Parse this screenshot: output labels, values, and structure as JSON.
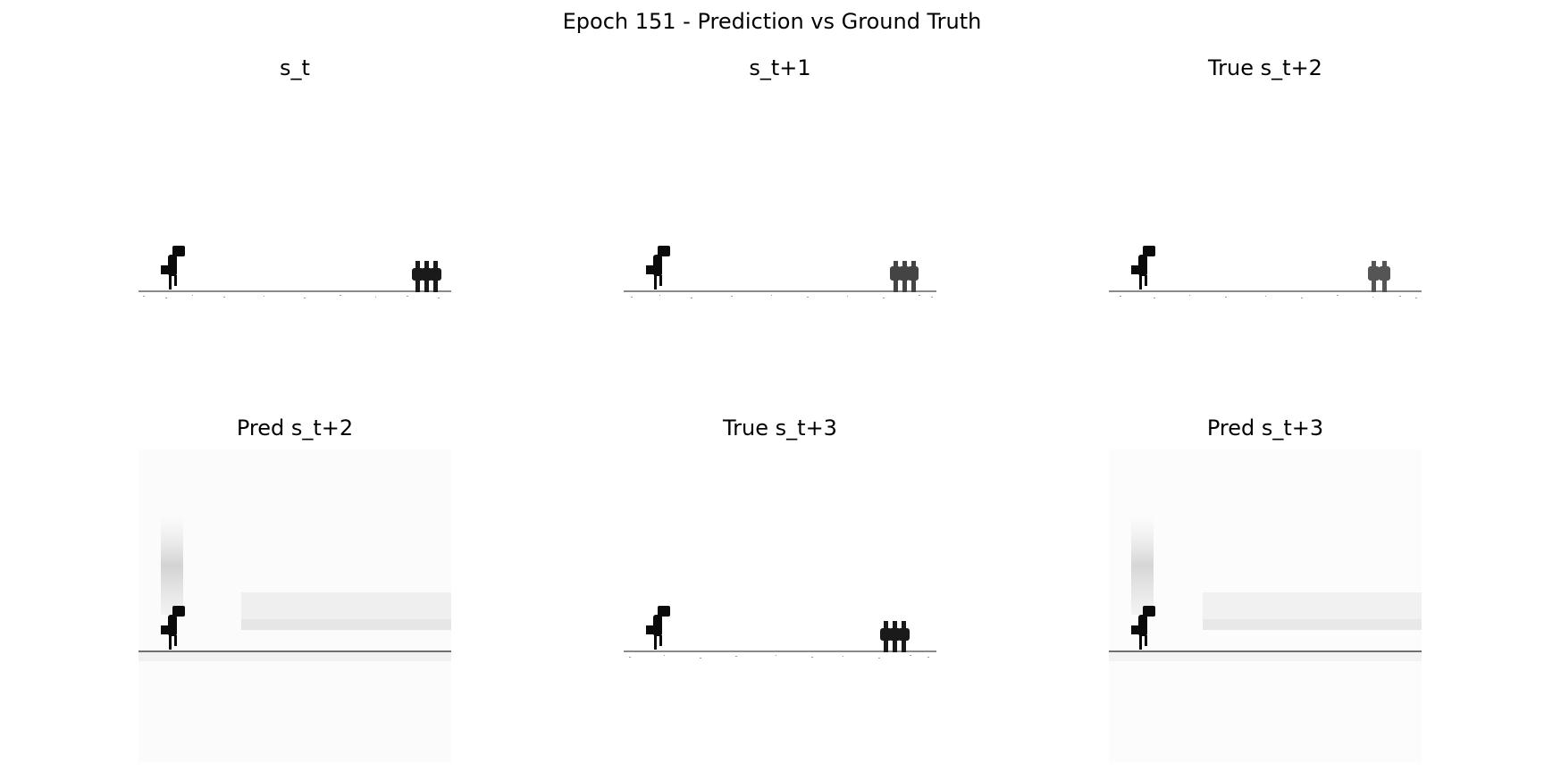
{
  "figure": {
    "title": "Epoch 151 - Prediction vs Ground Truth"
  },
  "panels": [
    {
      "title": "s_t",
      "kind": "true",
      "obstacle": "three-cactus"
    },
    {
      "title": "s_t+1",
      "kind": "true",
      "obstacle": "three-cactus-gray"
    },
    {
      "title": "True s_t+2",
      "kind": "true",
      "obstacle": "two-cactus-gray"
    },
    {
      "title": "Pred s_t+2",
      "kind": "pred",
      "obstacle": "none"
    },
    {
      "title": "True s_t+3",
      "kind": "true",
      "obstacle": "three-cactus"
    },
    {
      "title": "Pred s_t+3",
      "kind": "pred",
      "obstacle": "none"
    }
  ]
}
